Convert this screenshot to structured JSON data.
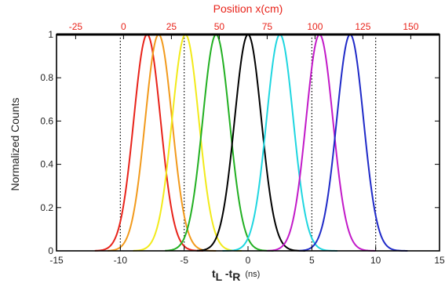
{
  "chart_data": {
    "type": "line",
    "title": "",
    "xlabel": "t_L - t_R (ns)",
    "xlabel_parts": {
      "t1": "t",
      "s1": "L",
      "mid": " -t",
      "s2": "R",
      "unit": "(ns)"
    },
    "ylabel": "Normalized Counts",
    "x2label": "Position x(cm)",
    "xlim": [
      -15,
      15
    ],
    "ylim": [
      0,
      1
    ],
    "x2lim": [
      -35,
      165
    ],
    "xticks": [
      "-15",
      "-10",
      "-5",
      "0",
      "5",
      "10",
      "15"
    ],
    "yticks": [
      "0",
      "0.2",
      "0.4",
      "0.6",
      "0.8",
      "1"
    ],
    "x2ticks": [
      "-25",
      "0",
      "25",
      "50",
      "75",
      "100",
      "125",
      "150"
    ],
    "vlines_x": [
      -10,
      -5,
      5,
      10
    ],
    "grid": false,
    "legend": "none",
    "series": [
      {
        "color": "#e8231a",
        "mean": -7.9,
        "sigma": 1.05,
        "x_range": [
          -12,
          -3.5
        ]
      },
      {
        "color": "#f29a1c",
        "mean": -7.0,
        "sigma": 1.05,
        "x_range": [
          -11,
          -2.5
        ]
      },
      {
        "color": "#f2ea1a",
        "mean": -4.9,
        "sigma": 1.05,
        "x_range": [
          -9,
          -0.5
        ]
      },
      {
        "color": "#22b022",
        "mean": -2.5,
        "sigma": 1.05,
        "x_range": [
          -6.5,
          2
        ]
      },
      {
        "color": "#000000",
        "mean": 0.0,
        "sigma": 1.05,
        "x_range": [
          -4,
          4.5
        ]
      },
      {
        "color": "#1fd6e0",
        "mean": 2.5,
        "sigma": 1.05,
        "x_range": [
          -2,
          7
        ]
      },
      {
        "color": "#c21ac8",
        "mean": 5.6,
        "sigma": 1.05,
        "x_range": [
          1.5,
          10
        ]
      },
      {
        "color": "#1f2ac8",
        "mean": 8.0,
        "sigma": 1.05,
        "x_range": [
          4,
          12.5
        ]
      }
    ]
  }
}
